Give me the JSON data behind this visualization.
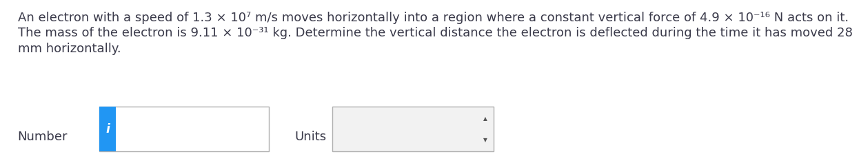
{
  "background_color": "#ffffff",
  "text_color": "#3a3a4a",
  "font_size": 13.0,
  "line1": "An electron with a speed of 1.3 × 10⁷ m/s moves horizontally into a region where a constant vertical force of 4.9 × 10⁻¹⁶ N acts on it.",
  "line2": "The mass of the electron is 9.11 × 10⁻³¹ kg. Determine the vertical distance the electron is deflected during the time it has moved 28",
  "line3": "mm horizontally.",
  "number_label": "Number",
  "units_label": "Units",
  "info_color": "#2196f3",
  "box_border_color": "#b0b0b0",
  "units_box_bg": "#f2f2f2",
  "arrow_color": "#555555"
}
